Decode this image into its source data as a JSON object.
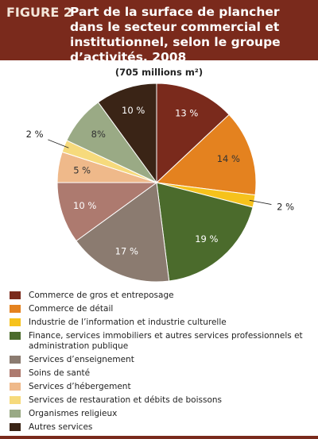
{
  "chart_data": {
    "type": "pie",
    "figure_label": "FIGURE 2",
    "title": "Part de la surface de plancher dans le secteur commercial et institutionnel, selon le groupe d’activités, 2008",
    "subtitle": "(705 millions m²)",
    "categories": [
      "Commerce de gros et entreposage",
      "Commerce de détail",
      "Industrie de l’information et industrie culturelle",
      "Finance, services immobiliers et autres services professionnels et administration publique",
      "Services d’enseignement",
      "Soins de santé",
      "Services d’hébergement",
      "Services de restauration et débits de boissons",
      "Organismes religieux",
      "Autres services"
    ],
    "values": [
      13,
      14,
      2,
      19,
      17,
      10,
      5,
      2,
      8,
      10
    ],
    "value_labels": [
      "13 %",
      "14 %",
      "2 %",
      "19 %",
      "17 %",
      "10 %",
      "5 %",
      "2 %",
      "8%",
      "10 %"
    ],
    "colors": [
      "#7a2a1c",
      "#e4821f",
      "#f6c21c",
      "#4b6b2c",
      "#8b7b70",
      "#ad7a6f",
      "#efb98a",
      "#f6da7c",
      "#9aaa85",
      "#3a2416"
    ]
  }
}
